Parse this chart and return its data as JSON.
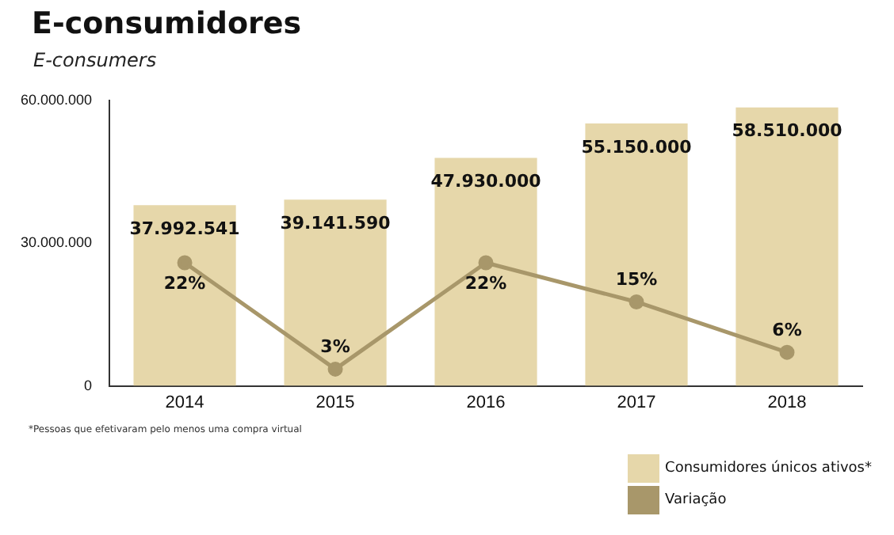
{
  "chart_data": {
    "type": "bar",
    "title": "E-consumidores",
    "subtitle": "E-consumers",
    "categories": [
      "2014",
      "2015",
      "2016",
      "2017",
      "2018"
    ],
    "series": [
      {
        "name": "Consumidores únicos ativos*",
        "color": "#e6d7aa",
        "values": [
          37992541,
          39141590,
          47930000,
          55150000,
          58510000
        ],
        "value_labels": [
          "37.992.541",
          "39.141.590",
          "47.930.000",
          "55.150.000",
          "58.510.000"
        ]
      },
      {
        "name": "Variação",
        "type": "line",
        "axis": "y2",
        "color": "#a8976a",
        "values": [
          22,
          3,
          22,
          15,
          6
        ],
        "value_labels": [
          "22%",
          "3%",
          "22%",
          "15%",
          "6%"
        ]
      }
    ],
    "ylim": [
      0,
      60000000
    ],
    "yticks": [
      {
        "value": 0,
        "label": "0"
      },
      {
        "value": 30000000,
        "label": "30.000.000"
      },
      {
        "value": 60000000,
        "label": "60.000.000"
      }
    ],
    "y2lim": [
      0,
      51
    ],
    "tick_labels": "xy",
    "grid": false,
    "marker": "circle",
    "line_style": "solid",
    "legend": "bottom right",
    "annotations": [
      "*Pessoas que efetivaram pelo menos uma compra virtual"
    ]
  }
}
